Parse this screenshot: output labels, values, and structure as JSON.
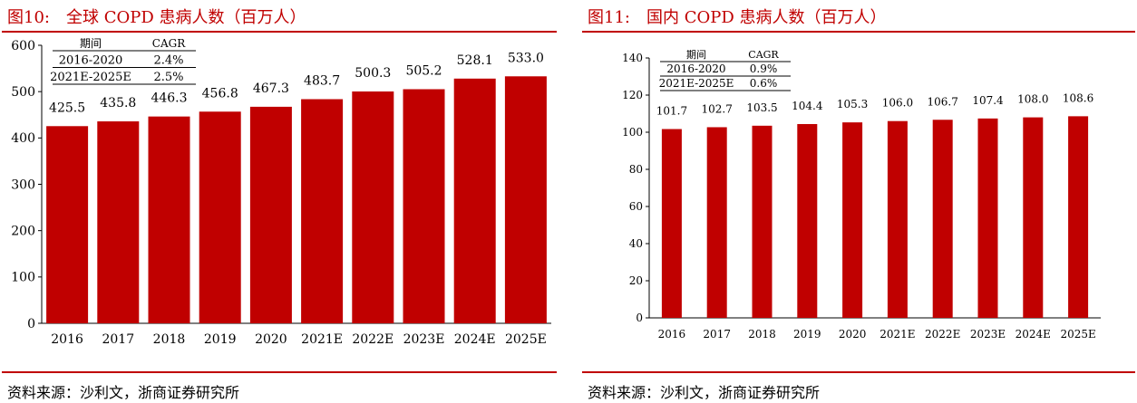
{
  "charts": [
    {
      "figure_number": "图10:",
      "figure_title": "全球 COPD 患病人数（百万人）",
      "source": "资料来源：沙利文，浙商证券研究所",
      "cagr_table": {
        "headers": [
          "期间",
          "CAGR"
        ],
        "rows": [
          [
            "2016-2020",
            "2.4%"
          ],
          [
            "2021E-2025E",
            "2.5%"
          ]
        ]
      }
    },
    {
      "figure_number": "图11:",
      "figure_title": "国内 COPD 患病人数（百万人）",
      "source": "资料来源：沙利文，浙商证券研究所",
      "cagr_table": {
        "headers": [
          "期间",
          "CAGR"
        ],
        "rows": [
          [
            "2016-2020",
            "0.9%"
          ],
          [
            "2021E-2025E",
            "0.6%"
          ]
        ]
      }
    }
  ],
  "chart_data": [
    {
      "type": "bar",
      "title": "全球 COPD 患病人数（百万人）",
      "categories": [
        "2016",
        "2017",
        "2018",
        "2019",
        "2020",
        "2021E",
        "2022E",
        "2023E",
        "2024E",
        "2025E"
      ],
      "values": [
        425.5,
        435.8,
        446.3,
        456.8,
        467.3,
        483.7,
        500.3,
        505.2,
        528.1,
        533.0
      ],
      "value_labels": [
        "425.5",
        "435.8",
        "446.3",
        "456.8",
        "467.3",
        "483.7",
        "500.3",
        "505.2",
        "528.1",
        "533.0"
      ],
      "ylim": [
        0,
        600
      ],
      "yticks": [
        "0",
        "100",
        "200",
        "300",
        "400",
        "500",
        "600"
      ],
      "bar_color": "#c00000",
      "grid": false
    },
    {
      "type": "bar",
      "title": "国内 COPD 患病人数（百万人）",
      "categories": [
        "2016",
        "2017",
        "2018",
        "2019",
        "2020",
        "2021E",
        "2022E",
        "2023E",
        "2024E",
        "2025E"
      ],
      "values": [
        101.7,
        102.7,
        103.5,
        104.4,
        105.3,
        106.0,
        106.7,
        107.4,
        108.0,
        108.6
      ],
      "value_labels": [
        "101.7",
        "102.7",
        "103.5",
        "104.4",
        "105.3",
        "106.0",
        "106.7",
        "107.4",
        "108.0",
        "108.6"
      ],
      "ylim": [
        0,
        140
      ],
      "yticks": [
        "0",
        "20",
        "40",
        "60",
        "80",
        "100",
        "120",
        "140"
      ],
      "bar_color": "#c00000",
      "grid": false
    }
  ]
}
